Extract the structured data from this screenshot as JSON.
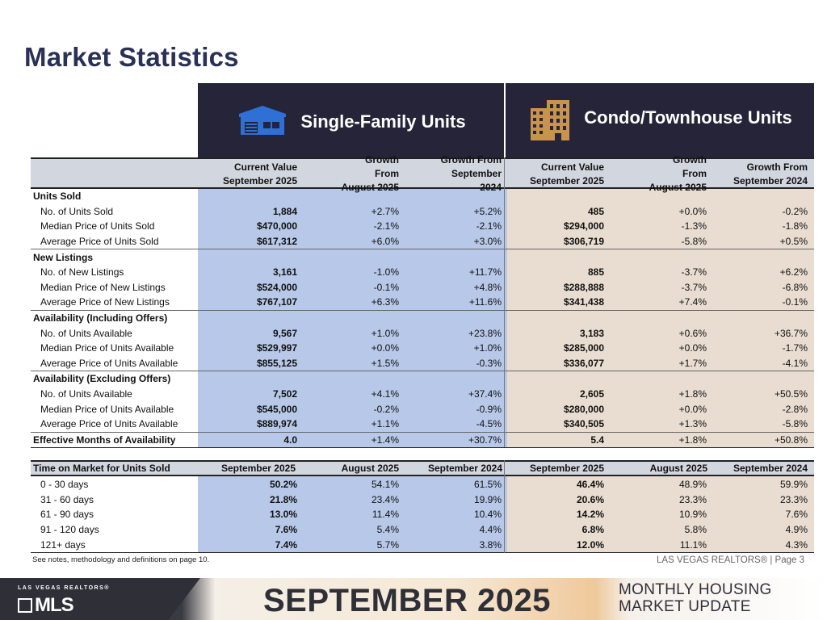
{
  "page": {
    "title": "Market Statistics"
  },
  "header": {
    "single_family": "Single-Family Units",
    "condo": "Condo/Townhouse Units",
    "colors": {
      "band": "#252438",
      "house_icon": "#2f6fd6",
      "building_icon": "#c8934f"
    }
  },
  "columns": {
    "c1": [
      "Current Value",
      "September 2025"
    ],
    "c2": [
      "Growth From",
      "August 2025"
    ],
    "c3": [
      "Growth From",
      "September 2024"
    ],
    "c4": [
      "Current Value",
      "September 2025"
    ],
    "c5": [
      "Growth From",
      "August 2025"
    ],
    "c6": [
      "Growth From",
      "September 2024"
    ]
  },
  "sections": [
    {
      "title": "Units Sold",
      "rows": [
        {
          "label": "No. of Units Sold",
          "v": [
            "1,884",
            "+2.7%",
            "+5.2%",
            "485",
            "+0.0%",
            "-0.2%"
          ]
        },
        {
          "label": "Median Price of Units Sold",
          "v": [
            "$470,000",
            "-2.1%",
            "-2.1%",
            "$294,000",
            "-1.3%",
            "-1.8%"
          ]
        },
        {
          "label": "Average Price of Units Sold",
          "v": [
            "$617,312",
            "+6.0%",
            "+3.0%",
            "$306,719",
            "-5.8%",
            "+0.5%"
          ]
        }
      ]
    },
    {
      "title": "New Listings",
      "rows": [
        {
          "label": "No. of New Listings",
          "v": [
            "3,161",
            "-1.0%",
            "+11.7%",
            "885",
            "-3.7%",
            "+6.2%"
          ]
        },
        {
          "label": "Median Price of New Listings",
          "v": [
            "$524,000",
            "-0.1%",
            "+4.8%",
            "$288,888",
            "-3.7%",
            "-6.8%"
          ]
        },
        {
          "label": "Average Price of New Listings",
          "v": [
            "$767,107",
            "+6.3%",
            "+11.6%",
            "$341,438",
            "+7.4%",
            "-0.1%"
          ]
        }
      ]
    },
    {
      "title": "Availability (Including Offers)",
      "rows": [
        {
          "label": "No. of Units Available",
          "v": [
            "9,567",
            "+1.0%",
            "+23.8%",
            "3,183",
            "+0.6%",
            "+36.7%"
          ]
        },
        {
          "label": "Median Price of Units Available",
          "v": [
            "$529,997",
            "+0.0%",
            "+1.0%",
            "$285,000",
            "+0.0%",
            "-1.7%"
          ]
        },
        {
          "label": "Average Price of Units Available",
          "v": [
            "$855,125",
            "+1.5%",
            "-0.3%",
            "$336,077",
            "+1.7%",
            "-4.1%"
          ]
        }
      ]
    },
    {
      "title": "Availability (Excluding Offers)",
      "rows": [
        {
          "label": "No. of Units Available",
          "v": [
            "7,502",
            "+4.1%",
            "+37.4%",
            "2,605",
            "+1.8%",
            "+50.5%"
          ]
        },
        {
          "label": "Median Price of Units Available",
          "v": [
            "$545,000",
            "-0.2%",
            "-0.9%",
            "$280,000",
            "+0.0%",
            "-2.8%"
          ]
        },
        {
          "label": "Average Price of Units Available",
          "v": [
            "$889,974",
            "+1.1%",
            "-4.5%",
            "$340,505",
            "+1.3%",
            "-5.8%"
          ]
        }
      ]
    }
  ],
  "effective": {
    "label": "Effective Months of Availability",
    "v": [
      "4.0",
      "+1.4%",
      "+30.7%",
      "5.4",
      "+1.8%",
      "+50.8%"
    ]
  },
  "time_on_market": {
    "title": "Time on Market for Units Sold",
    "headers": [
      "September 2025",
      "August 2025",
      "September 2024",
      "September 2025",
      "August 2025",
      "September 2024"
    ],
    "rows": [
      {
        "label": "0 - 30 days",
        "v": [
          "50.2%",
          "54.1%",
          "61.5%",
          "46.4%",
          "48.9%",
          "59.9%"
        ]
      },
      {
        "label": "31 - 60 days",
        "v": [
          "21.8%",
          "23.4%",
          "19.9%",
          "20.6%",
          "23.3%",
          "23.3%"
        ]
      },
      {
        "label": "61 - 90 days",
        "v": [
          "13.0%",
          "11.4%",
          "10.4%",
          "14.2%",
          "10.9%",
          "7.6%"
        ]
      },
      {
        "label": "91 - 120 days",
        "v": [
          "7.6%",
          "5.4%",
          "4.4%",
          "6.8%",
          "5.8%",
          "4.9%"
        ]
      },
      {
        "label": "121+ days",
        "v": [
          "7.4%",
          "5.7%",
          "3.8%",
          "12.0%",
          "11.1%",
          "4.3%"
        ]
      }
    ]
  },
  "notes": "See notes, methodology and definitions on page 10.",
  "page_ref": "LAS VEGAS REALTORS® | Page 3",
  "footer": {
    "logo_top": "LAS VEGAS REALTORS®",
    "logo_main": "MLS",
    "month": "SEPTEMBER 2025",
    "update_line1": "MONTHLY HOUSING",
    "update_line2": "MARKET UPDATE"
  }
}
